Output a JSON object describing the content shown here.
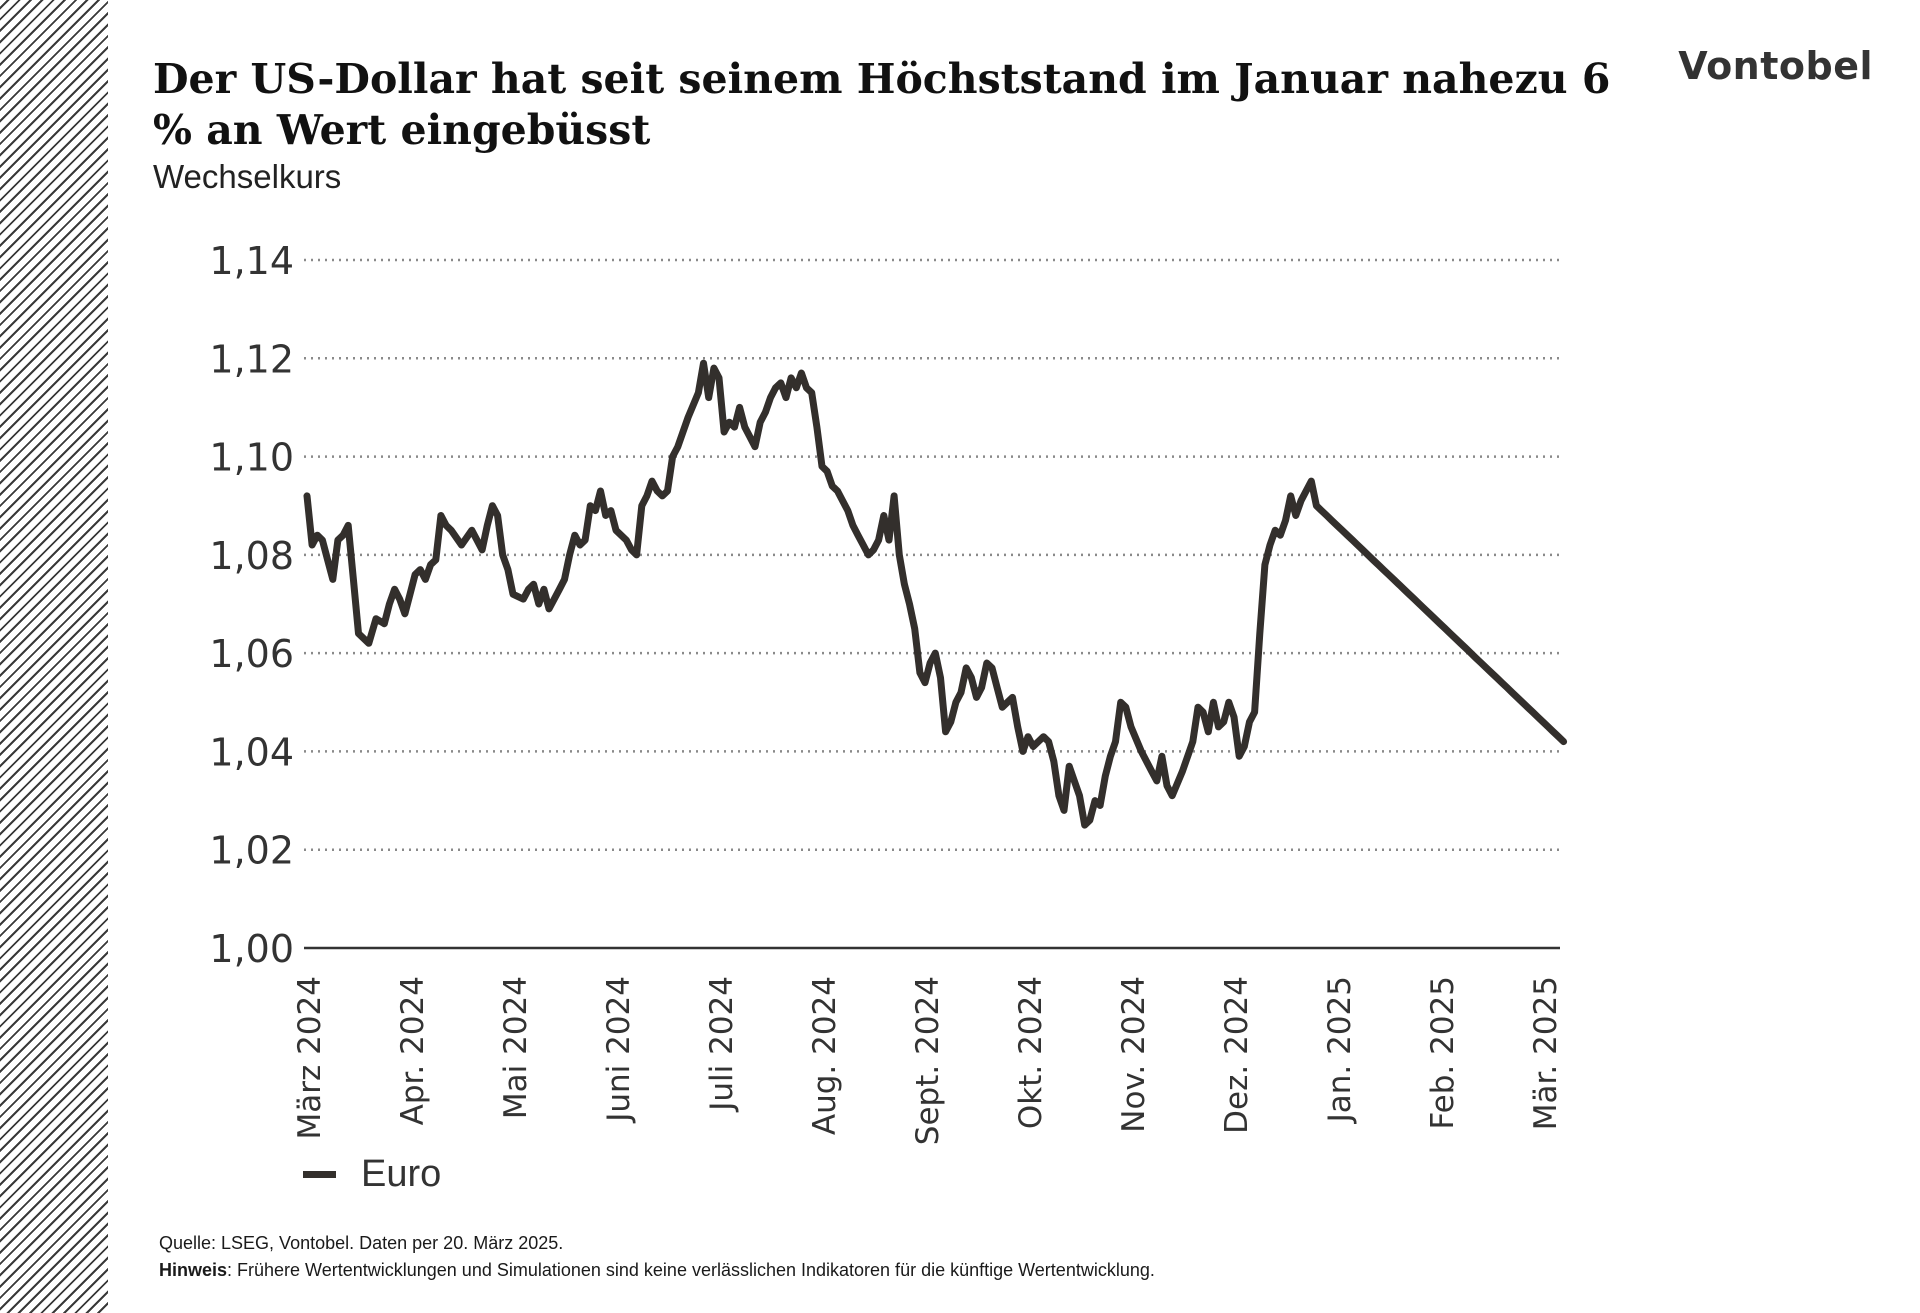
{
  "header": {
    "title": "Der US-Dollar hat seit seinem Höchststand im Januar nahezu 6 % an Wert eingebüsst",
    "subtitle": "Wechselkurs",
    "logo": "Vontobel"
  },
  "footer": {
    "source": "Quelle: LSEG, Vontobel. Daten per 20. März 2025.",
    "note_label": "Hinweis",
    "note_text": ": Frühere Wertentwicklungen und Simulationen sind keine verlässlichen Indikatoren für die künftige Wertentwicklung."
  },
  "chart_data": {
    "type": "line",
    "title": "Der US-Dollar hat seit seinem Höchststand im Januar nahezu 6 % an Wert eingebüsst",
    "subtitle": "Wechselkurs",
    "ylim": [
      1.0,
      1.14
    ],
    "ytick_values": [
      1.0,
      1.02,
      1.04,
      1.06,
      1.08,
      1.1,
      1.12,
      1.14
    ],
    "ytick_labels": [
      "1,00",
      "1,02",
      "1,04",
      "1,06",
      "1,08",
      "1,10",
      "1,12",
      "1,14"
    ],
    "xtick_labels": [
      "März 2024",
      "Apr. 2024",
      "Mai 2024",
      "Juni 2024",
      "Juli 2024",
      "Aug. 2024",
      "Sept. 2024",
      "Okt. 2024",
      "Nov. 2024",
      "Dez. 2024",
      "Jan. 2025",
      "Feb. 2025",
      "Mär. 2025"
    ],
    "grid": true,
    "legend_position": "bottom-left",
    "line_color": "#332f2c",
    "series": [
      {
        "name": "Euro",
        "x": [
          0.0,
          0.05,
          0.1,
          0.15,
          0.2,
          0.25,
          0.3,
          0.35,
          0.4,
          0.45,
          0.5,
          0.55,
          0.6,
          0.67,
          0.75,
          0.8,
          0.85,
          0.9,
          0.95,
          1.0,
          1.05,
          1.1,
          1.15,
          1.2,
          1.25,
          1.3,
          1.35,
          1.4,
          1.5,
          1.6,
          1.7,
          1.75,
          1.8,
          1.85,
          1.9,
          1.95,
          2.0,
          2.1,
          2.15,
          2.2,
          2.25,
          2.3,
          2.35,
          2.4,
          2.45,
          2.5,
          2.55,
          2.6,
          2.65,
          2.7,
          2.75,
          2.8,
          2.85,
          2.9,
          2.95,
          3.0,
          3.1,
          3.15,
          3.2,
          3.25,
          3.3,
          3.35,
          3.4,
          3.45,
          3.5,
          3.55,
          3.6,
          3.7,
          3.8,
          3.85,
          3.9,
          3.95,
          4.0,
          4.05,
          4.1,
          4.15,
          4.2,
          4.25,
          4.3,
          4.35,
          4.4,
          4.45,
          4.5,
          4.55,
          4.6,
          4.65,
          4.7,
          4.75,
          4.8,
          4.85,
          4.9,
          4.95,
          5.0,
          5.05,
          5.1,
          5.15,
          5.2,
          5.25,
          5.3,
          5.35,
          5.4,
          5.45,
          5.5,
          5.55,
          5.6,
          5.65,
          5.7,
          5.75,
          5.8,
          5.85,
          5.9,
          5.95,
          6.0,
          6.05,
          6.1,
          6.15,
          6.2,
          6.25,
          6.3,
          6.35,
          6.4,
          6.45,
          6.5,
          6.55,
          6.6,
          6.65,
          6.7,
          6.75,
          6.8,
          6.85,
          6.9,
          6.95,
          7.0,
          7.05,
          7.1,
          7.15,
          7.2,
          7.25,
          7.3,
          7.35,
          7.4,
          7.45,
          7.5,
          7.55,
          7.6,
          7.65,
          7.7,
          7.75,
          7.8,
          7.85,
          7.9,
          7.95,
          8.0,
          8.1,
          8.2,
          8.25,
          8.3,
          8.35,
          8.4,
          8.5,
          8.6,
          8.65,
          8.7,
          8.75,
          8.8,
          8.85,
          8.9,
          8.95,
          9.0,
          9.05,
          9.1,
          9.15,
          9.2,
          9.25,
          9.3,
          9.35,
          9.4,
          9.45,
          9.5,
          9.55,
          9.6,
          9.65,
          9.7,
          9.75,
          9.8,
          9.85,
          9.9,
          9.95,
          10.0,
          10.05,
          10.1,
          10.15,
          10.2,
          10.25,
          10.3,
          10.35,
          10.4,
          10.45,
          10.5,
          10.55,
          10.6,
          10.65,
          10.7,
          10.75,
          10.8,
          10.85,
          10.9,
          10.95,
          11.0,
          11.05,
          11.1,
          11.15,
          11.2,
          11.25,
          11.3,
          11.35,
          11.4,
          11.45,
          11.5,
          11.55,
          11.6,
          11.65,
          11.7,
          11.75,
          11.8,
          11.85,
          11.9,
          11.95,
          12.0,
          12.05,
          12.1,
          12.15,
          12.2,
          12.25
        ],
        "values": [
          1.092,
          1.082,
          1.084,
          1.083,
          1.079,
          1.075,
          1.083,
          1.084,
          1.086,
          1.075,
          1.064,
          1.063,
          1.062,
          1.067,
          1.066,
          1.07,
          1.073,
          1.071,
          1.068,
          1.072,
          1.076,
          1.077,
          1.075,
          1.078,
          1.079,
          1.088,
          1.086,
          1.085,
          1.082,
          1.085,
          1.081,
          1.086,
          1.09,
          1.088,
          1.08,
          1.077,
          1.072,
          1.071,
          1.073,
          1.074,
          1.07,
          1.073,
          1.069,
          1.071,
          1.073,
          1.075,
          1.08,
          1.084,
          1.082,
          1.083,
          1.09,
          1.089,
          1.093,
          1.088,
          1.089,
          1.085,
          1.083,
          1.081,
          1.08,
          1.09,
          1.092,
          1.095,
          1.093,
          1.092,
          1.093,
          1.1,
          1.102,
          1.108,
          1.113,
          1.119,
          1.112,
          1.118,
          1.116,
          1.105,
          1.107,
          1.106,
          1.11,
          1.106,
          1.104,
          1.102,
          1.107,
          1.109,
          1.112,
          1.114,
          1.115,
          1.112,
          1.116,
          1.114,
          1.117,
          1.114,
          1.113,
          1.106,
          1.098,
          1.097,
          1.094,
          1.093,
          1.091,
          1.089,
          1.086,
          1.084,
          1.082,
          1.08,
          1.081,
          1.083,
          1.088,
          1.083,
          1.092,
          1.08,
          1.074,
          1.07,
          1.065,
          1.056,
          1.054,
          1.058,
          1.06,
          1.055,
          1.044,
          1.046,
          1.05,
          1.052,
          1.057,
          1.055,
          1.051,
          1.053,
          1.058,
          1.057,
          1.053,
          1.049,
          1.05,
          1.051,
          1.045,
          1.04,
          1.043,
          1.041,
          1.042,
          1.043,
          1.042,
          1.038,
          1.031,
          1.028,
          1.037,
          1.034,
          1.031,
          1.025,
          1.026,
          1.03,
          1.029,
          1.035,
          1.039,
          1.042,
          1.05,
          1.049,
          1.045,
          1.04,
          1.036,
          1.034,
          1.039,
          1.033,
          1.031,
          1.036,
          1.042,
          1.049,
          1.048,
          1.044,
          1.05,
          1.045,
          1.046,
          1.05,
          1.047,
          1.039,
          1.041,
          1.046,
          1.048,
          1.064,
          1.078,
          1.082,
          1.085,
          1.084,
          1.087,
          1.092,
          1.088,
          1.091,
          1.093,
          1.095,
          1.09,
          1.089,
          1.088,
          1.087,
          1.086,
          1.085,
          1.084,
          1.083,
          1.082,
          1.081,
          1.08,
          1.079,
          1.078,
          1.077,
          1.076,
          1.075,
          1.074,
          1.073,
          1.072,
          1.071,
          1.07,
          1.069,
          1.068,
          1.067,
          1.066,
          1.065,
          1.064,
          1.063,
          1.062,
          1.061,
          1.06,
          1.059,
          1.058,
          1.057,
          1.056,
          1.055,
          1.054,
          1.053,
          1.052,
          1.051,
          1.05,
          1.049,
          1.048,
          1.047,
          1.046,
          1.045,
          1.044,
          1.043,
          1.042,
          1.041
        ]
      }
    ]
  }
}
